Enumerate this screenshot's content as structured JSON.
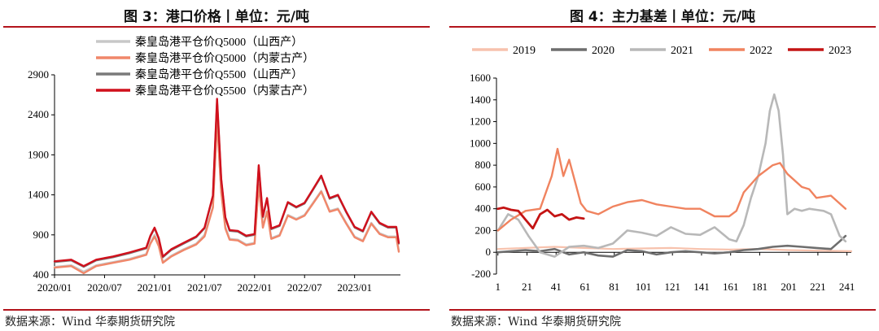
{
  "figures": [
    {
      "title": "图 3：港口价格丨单位：元/吨",
      "source": "数据来源：Wind  华泰期货研究院"
    },
    {
      "title": "图 4：主力基差丨单位：元/吨",
      "source": "数据来源：Wind  华泰期货研究院"
    }
  ],
  "chart_data": [
    {
      "type": "line",
      "title": "图 3：港口价格丨单位：元/吨",
      "xlabel": "",
      "ylabel": "",
      "ylim": [
        400,
        2900
      ],
      "yticks": [
        400,
        900,
        1400,
        1900,
        2400,
        2900
      ],
      "xlim": [
        0,
        41.5
      ],
      "xticks": [
        {
          "label": "2020/01",
          "x": 0
        },
        {
          "label": "2020/07",
          "x": 6
        },
        {
          "label": "2021/01",
          "x": 12
        },
        {
          "label": "2021/07",
          "x": 18
        },
        {
          "label": "2022/01",
          "x": 24
        },
        {
          "label": "2022/07",
          "x": 30
        },
        {
          "label": "2023/01",
          "x": 36
        }
      ],
      "grid": false,
      "legend_position": "top",
      "series": [
        {
          "name": "秦皇岛港平仓价Q5000（山西产）",
          "color": "#c8c8c8",
          "x": [
            0,
            2,
            3.5,
            5,
            7,
            9,
            11,
            11.5,
            12,
            12.5,
            13,
            14,
            15.5,
            17,
            18,
            19,
            19.5,
            20,
            20.5,
            21,
            22,
            23,
            24,
            24.5,
            25,
            25.5,
            26,
            27,
            28,
            29,
            30,
            31,
            32,
            33,
            34,
            35,
            36,
            37,
            38,
            39,
            40,
            41,
            41.3
          ],
          "values": [
            500,
            520,
            440,
            520,
            560,
            600,
            660,
            800,
            900,
            780,
            560,
            640,
            720,
            790,
            900,
            1250,
            2350,
            1450,
            1000,
            850,
            840,
            780,
            800,
            1550,
            1000,
            1200,
            860,
            900,
            1150,
            1100,
            1150,
            1300,
            1450,
            1200,
            1230,
            1050,
            880,
            830,
            1050,
            920,
            880,
            880,
            700
          ]
        },
        {
          "name": "秦皇岛港平仓价Q5000（内蒙古产）",
          "color": "#f0876a",
          "x": [
            0,
            2,
            3.5,
            5,
            7,
            9,
            11,
            11.5,
            12,
            12.5,
            13,
            14,
            15.5,
            17,
            18,
            19,
            19.5,
            20,
            20.5,
            21,
            22,
            23,
            24,
            24.5,
            25,
            25.5,
            26,
            27,
            28,
            29,
            30,
            31,
            32,
            33,
            34,
            35,
            36,
            37,
            38,
            39,
            40,
            41,
            41.3
          ],
          "values": [
            490,
            510,
            420,
            510,
            550,
            590,
            650,
            790,
            880,
            760,
            550,
            630,
            710,
            780,
            880,
            1240,
            2330,
            1430,
            980,
            840,
            830,
            770,
            790,
            1530,
            990,
            1190,
            850,
            890,
            1140,
            1090,
            1140,
            1290,
            1440,
            1190,
            1220,
            1040,
            870,
            820,
            1040,
            910,
            870,
            870,
            690
          ]
        },
        {
          "name": "秦皇岛港平仓价Q5500（山西产）",
          "color": "#7a7a7a",
          "x": [
            0,
            2,
            3.5,
            5,
            7,
            9,
            11,
            11.5,
            12,
            12.5,
            13,
            14,
            15.5,
            17,
            18,
            19,
            19.5,
            20,
            20.5,
            21,
            22,
            23,
            24,
            24.5,
            25,
            25.5,
            26,
            27,
            28,
            29,
            30,
            31,
            32,
            33,
            34,
            35,
            36,
            37,
            38,
            39,
            40,
            41,
            41.3
          ],
          "values": [
            560,
            580,
            500,
            580,
            620,
            670,
            730,
            880,
            980,
            850,
            620,
            710,
            790,
            870,
            980,
            1380,
            2580,
            1590,
            1110,
            950,
            940,
            880,
            900,
            1750,
            1120,
            1350,
            970,
            1010,
            1300,
            1240,
            1290,
            1460,
            1630,
            1350,
            1390,
            1180,
            990,
            940,
            1180,
            1040,
            990,
            990,
            790
          ]
        },
        {
          "name": "秦皇岛港平仓价Q5500（内蒙古产）",
          "color": "#d0101c",
          "x": [
            0,
            2,
            3.5,
            5,
            7,
            9,
            11,
            11.5,
            12,
            12.5,
            13,
            14,
            15.5,
            17,
            18,
            19,
            19.5,
            20,
            20.5,
            21,
            22,
            23,
            24,
            24.5,
            25,
            25.5,
            26,
            27,
            28,
            29,
            30,
            31,
            32,
            33,
            34,
            35,
            36,
            37,
            38,
            39,
            40,
            41,
            41.3
          ],
          "values": [
            570,
            590,
            510,
            590,
            630,
            680,
            740,
            890,
            990,
            860,
            630,
            720,
            800,
            880,
            990,
            1390,
            2600,
            1600,
            1120,
            960,
            950,
            890,
            910,
            1770,
            1130,
            1360,
            980,
            1020,
            1310,
            1250,
            1300,
            1470,
            1640,
            1360,
            1400,
            1190,
            1000,
            950,
            1190,
            1050,
            1000,
            1000,
            800
          ]
        }
      ]
    },
    {
      "type": "line",
      "title": "图 4：主力基差丨单位：元/吨",
      "xlabel": "",
      "ylabel": "",
      "ylim": [
        -200,
        1600
      ],
      "yticks": [
        -200,
        0,
        200,
        400,
        600,
        800,
        1000,
        1200,
        1400,
        1600
      ],
      "xlim": [
        0,
        244
      ],
      "xticks": [
        1,
        21,
        41,
        61,
        81,
        101,
        121,
        141,
        161,
        181,
        201,
        221,
        241
      ],
      "grid": false,
      "legend_position": "top",
      "series": [
        {
          "name": "2019",
          "color": "#f7c2ad",
          "x": [
            1,
            20,
            40,
            60,
            80,
            100,
            120,
            140,
            160,
            180,
            200,
            220,
            244
          ],
          "values": [
            30,
            40,
            50,
            40,
            30,
            35,
            40,
            30,
            25,
            30,
            20,
            15,
            10
          ]
        },
        {
          "name": "2020",
          "color": "#6e6e6e",
          "x": [
            1,
            10,
            20,
            30,
            40,
            50,
            60,
            70,
            80,
            90,
            100,
            110,
            120,
            130,
            140,
            150,
            160,
            170,
            180,
            190,
            200,
            210,
            220,
            230,
            236,
            240
          ],
          "values": [
            0,
            10,
            20,
            10,
            30,
            -20,
            0,
            -30,
            -40,
            20,
            10,
            -20,
            0,
            10,
            0,
            -10,
            0,
            20,
            30,
            50,
            60,
            50,
            40,
            30,
            100,
            150
          ]
        },
        {
          "name": "2021",
          "color": "#b8b8b8",
          "x": [
            1,
            8,
            15,
            22,
            30,
            40,
            50,
            60,
            70,
            80,
            90,
            100,
            110,
            120,
            130,
            140,
            150,
            160,
            165,
            170,
            175,
            180,
            185,
            188,
            191,
            194,
            197,
            200,
            205,
            210,
            215,
            220,
            225,
            230,
            236,
            240
          ],
          "values": [
            200,
            350,
            300,
            150,
            0,
            -40,
            50,
            60,
            40,
            80,
            200,
            180,
            150,
            230,
            170,
            160,
            230,
            120,
            100,
            250,
            500,
            700,
            1000,
            1300,
            1450,
            1300,
            900,
            350,
            400,
            380,
            400,
            390,
            380,
            350,
            150,
            100
          ]
        },
        {
          "name": "2022",
          "color": "#f0835f",
          "x": [
            1,
            10,
            20,
            30,
            38,
            42,
            46,
            50,
            54,
            58,
            62,
            70,
            80,
            90,
            100,
            110,
            120,
            130,
            140,
            150,
            160,
            165,
            170,
            180,
            190,
            195,
            200,
            210,
            215,
            220,
            230,
            240
          ],
          "values": [
            200,
            300,
            380,
            400,
            700,
            950,
            700,
            850,
            650,
            450,
            380,
            350,
            420,
            460,
            480,
            440,
            420,
            400,
            400,
            330,
            330,
            380,
            550,
            700,
            800,
            820,
            720,
            600,
            580,
            500,
            520,
            400
          ]
        },
        {
          "name": "2023",
          "color": "#c41414",
          "x": [
            1,
            5,
            10,
            15,
            20,
            25,
            30,
            35,
            40,
            45,
            50,
            55,
            60
          ],
          "values": [
            400,
            410,
            390,
            380,
            300,
            220,
            350,
            390,
            330,
            350,
            300,
            320,
            310
          ]
        }
      ]
    }
  ]
}
